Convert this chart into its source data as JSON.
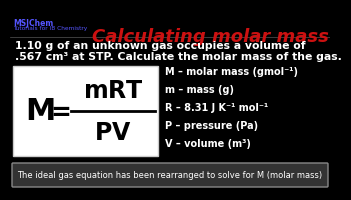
{
  "bg_color": "#000000",
  "title": "Calculating molar mass",
  "title_color": "#cc1111",
  "title_fontsize": 13,
  "watermark_line1": "MSJChem",
  "watermark_line2": "Tutorials for IB Chemistry",
  "watermark_color": "#5555ff",
  "problem_line1": "1.10 g of an unknown gas occupies a volume of",
  "problem_line2": ".567 cm³ at STP. Calculate the molar mass of the gas.",
  "problem_color": "#ffffff",
  "problem_fontsize": 7.8,
  "formula_box_bg": "#ffffff",
  "formula_color": "#000000",
  "formula_fontsize": 18,
  "legend_lines": [
    "M – molar mass (gmol⁻¹)",
    "m – mass (g)",
    "R – 8.31 J K⁻¹ mol⁻¹",
    "P – pressure (Pa)",
    "V – volume (m³)"
  ],
  "legend_color": "#ffffff",
  "legend_fontsize": 7.0,
  "footer_text": "The ideal gas equation has been rearranged to solve for M (molar mass)",
  "footer_bg": "#333333",
  "footer_color": "#ffffff",
  "footer_fontsize": 6.0
}
